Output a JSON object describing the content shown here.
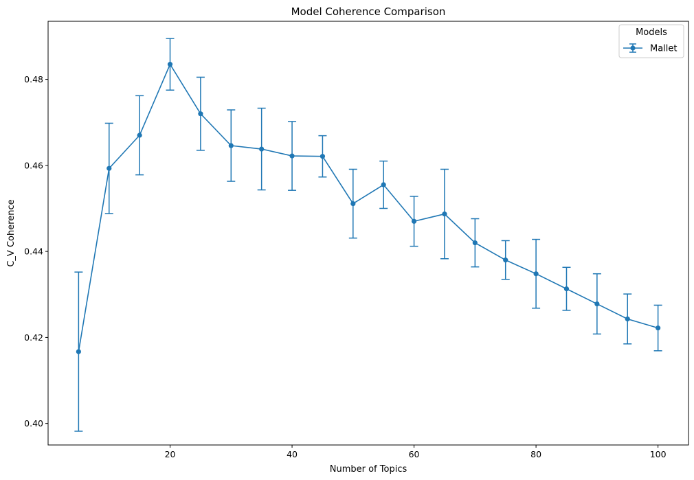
{
  "chart_data": {
    "type": "line",
    "title": "Model Coherence Comparison",
    "xlabel": "Number of Topics",
    "ylabel": "C_V Coherence",
    "xlim": [
      0,
      105
    ],
    "ylim": [
      0.395,
      0.4935
    ],
    "x_ticks": [
      20,
      40,
      60,
      80,
      100
    ],
    "y_ticks": [
      0.4,
      0.42,
      0.44,
      0.46,
      0.48
    ],
    "x_tick_labels": [
      "20",
      "40",
      "60",
      "80",
      "100"
    ],
    "y_tick_labels": [
      "0.40",
      "0.42",
      "0.44",
      "0.46",
      "0.48"
    ],
    "grid": false,
    "legend": {
      "title": "Models",
      "placement": "top-right"
    },
    "series": [
      {
        "name": "Mallet",
        "color": "#1f77b4",
        "x": [
          5,
          10,
          15,
          20,
          25,
          30,
          35,
          40,
          45,
          50,
          55,
          60,
          65,
          70,
          75,
          80,
          85,
          90,
          95,
          100
        ],
        "y": [
          0.4167,
          0.4593,
          0.467,
          0.4835,
          0.472,
          0.4646,
          0.4638,
          0.4622,
          0.4621,
          0.4511,
          0.4555,
          0.447,
          0.4487,
          0.442,
          0.438,
          0.4348,
          0.4313,
          0.4278,
          0.4243,
          0.4222
        ],
        "yerr": [
          0.0185,
          0.0105,
          0.0092,
          0.006,
          0.0085,
          0.0083,
          0.0095,
          0.008,
          0.0048,
          0.008,
          0.0055,
          0.0058,
          0.0104,
          0.0056,
          0.0045,
          0.008,
          0.005,
          0.007,
          0.0058,
          0.0053
        ]
      }
    ]
  }
}
